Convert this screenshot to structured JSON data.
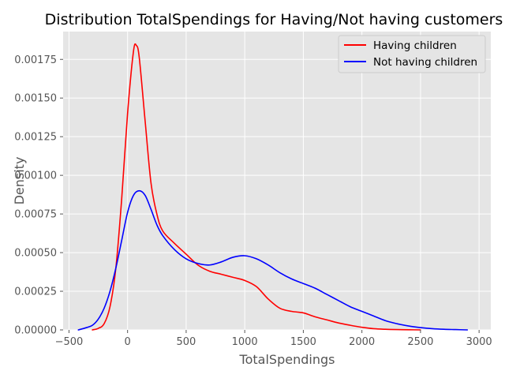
{
  "chart_data": {
    "type": "line",
    "title": "Distribution TotalSpendings for Having/Not having customers",
    "xlabel": "TotalSpendings",
    "ylabel": "Density",
    "xlim": [
      -550,
      3100
    ],
    "ylim": [
      0,
      0.00193
    ],
    "xticks": [
      -500,
      0,
      500,
      1000,
      1500,
      2000,
      2500,
      3000
    ],
    "xtick_labels": [
      "−500",
      "0",
      "500",
      "1000",
      "1500",
      "2000",
      "2500",
      "3000"
    ],
    "yticks": [
      0,
      0.00025,
      0.0005,
      0.00075,
      0.001,
      0.00125,
      0.0015,
      0.00175
    ],
    "ytick_labels": [
      "0.00000",
      "0.00025",
      "0.00050",
      "0.00075",
      "0.00100",
      "0.00125",
      "0.00150",
      "0.00175"
    ],
    "grid": true,
    "legend_position": "top-right",
    "background": "#e5e5e5",
    "series": [
      {
        "name": "Having children",
        "color": "#ff0000",
        "x": [
          -300,
          -250,
          -200,
          -150,
          -100,
          -50,
          0,
          50,
          75,
          100,
          150,
          200,
          250,
          300,
          400,
          500,
          600,
          700,
          800,
          900,
          1000,
          1100,
          1200,
          1300,
          1400,
          1500,
          1600,
          1700,
          1800,
          1900,
          2000,
          2100,
          2200,
          2300,
          2400,
          2500
        ],
        "y": [
          0.0,
          1e-05,
          4e-05,
          0.00015,
          0.0004,
          0.00085,
          0.0014,
          0.0018,
          0.00184,
          0.00176,
          0.00135,
          0.00095,
          0.00075,
          0.00064,
          0.00056,
          0.00049,
          0.00042,
          0.00038,
          0.00036,
          0.00034,
          0.00032,
          0.00028,
          0.0002,
          0.00014,
          0.00012,
          0.00011,
          8.5e-05,
          6.5e-05,
          4.5e-05,
          3e-05,
          1.7e-05,
          8e-06,
          4e-06,
          2e-06,
          1e-06,
          0.0
        ]
      },
      {
        "name": "Not having children",
        "color": "#0000ff",
        "x": [
          -420,
          -350,
          -300,
          -250,
          -200,
          -150,
          -100,
          -50,
          0,
          50,
          100,
          150,
          200,
          250,
          300,
          400,
          500,
          600,
          700,
          800,
          900,
          1000,
          1100,
          1200,
          1300,
          1400,
          1500,
          1600,
          1700,
          1800,
          1900,
          2000,
          2100,
          2200,
          2300,
          2400,
          2500,
          2600,
          2700,
          2800,
          2900
        ],
        "y": [
          0.0,
          1.5e-05,
          3e-05,
          7e-05,
          0.00014,
          0.00025,
          0.0004,
          0.00058,
          0.00076,
          0.00087,
          0.0009,
          0.00087,
          0.00078,
          0.00068,
          0.00061,
          0.00052,
          0.00046,
          0.00043,
          0.00042,
          0.00044,
          0.00047,
          0.00048,
          0.00046,
          0.00042,
          0.00037,
          0.00033,
          0.0003,
          0.00027,
          0.00023,
          0.00019,
          0.00015,
          0.00012,
          9e-05,
          6e-05,
          4e-05,
          2.5e-05,
          1.5e-05,
          8e-06,
          4e-06,
          2e-06,
          0.0
        ]
      }
    ]
  }
}
